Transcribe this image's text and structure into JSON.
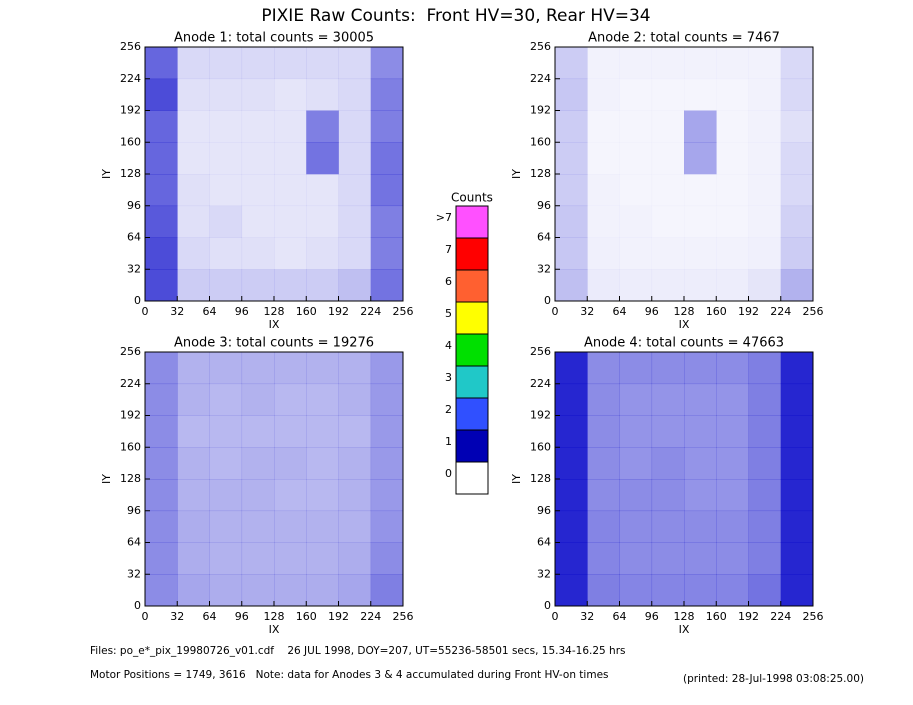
{
  "title": "PIXIE Raw Counts:  Front HV=30, Rear HV=34",
  "chart_data": [
    {
      "type": "heatmap",
      "title": "Anode 1: total counts = 30005",
      "xlabel": "IX",
      "ylabel": "IY",
      "xlim": [
        0,
        256
      ],
      "ylim": [
        0,
        256
      ],
      "xticks": [
        0,
        32,
        64,
        96,
        128,
        160,
        192,
        224,
        256
      ],
      "yticks": [
        0,
        32,
        64,
        96,
        128,
        160,
        192,
        224,
        256
      ],
      "z": [
        [
          0.6,
          0.15,
          0.15,
          0.15,
          0.15,
          0.15,
          0.15,
          0.45
        ],
        [
          0.7,
          0.12,
          0.12,
          0.12,
          0.1,
          0.12,
          0.15,
          0.5
        ],
        [
          0.6,
          0.1,
          0.1,
          0.1,
          0.1,
          0.5,
          0.15,
          0.5
        ],
        [
          0.6,
          0.1,
          0.1,
          0.1,
          0.1,
          0.55,
          0.15,
          0.55
        ],
        [
          0.6,
          0.12,
          0.1,
          0.1,
          0.1,
          0.1,
          0.15,
          0.55
        ],
        [
          0.65,
          0.12,
          0.15,
          0.1,
          0.1,
          0.1,
          0.15,
          0.5
        ],
        [
          0.7,
          0.15,
          0.12,
          0.12,
          0.1,
          0.12,
          0.15,
          0.5
        ],
        [
          0.7,
          0.2,
          0.2,
          0.2,
          0.2,
          0.2,
          0.25,
          0.55
        ]
      ]
    },
    {
      "type": "heatmap",
      "title": "Anode 2: total counts = 7467",
      "xlabel": "IX",
      "ylabel": "IY",
      "xlim": [
        0,
        256
      ],
      "ylim": [
        0,
        256
      ],
      "xticks": [
        0,
        32,
        64,
        96,
        128,
        160,
        192,
        224,
        256
      ],
      "yticks": [
        0,
        32,
        64,
        96,
        128,
        160,
        192,
        224,
        256
      ],
      "z": [
        [
          0.2,
          0.05,
          0.05,
          0.05,
          0.05,
          0.05,
          0.05,
          0.15
        ],
        [
          0.22,
          0.05,
          0.04,
          0.04,
          0.04,
          0.04,
          0.05,
          0.15
        ],
        [
          0.2,
          0.04,
          0.04,
          0.04,
          0.35,
          0.04,
          0.05,
          0.12
        ],
        [
          0.2,
          0.04,
          0.04,
          0.04,
          0.35,
          0.04,
          0.05,
          0.15
        ],
        [
          0.2,
          0.05,
          0.04,
          0.04,
          0.04,
          0.04,
          0.05,
          0.15
        ],
        [
          0.22,
          0.05,
          0.05,
          0.04,
          0.04,
          0.04,
          0.05,
          0.18
        ],
        [
          0.22,
          0.06,
          0.05,
          0.05,
          0.05,
          0.05,
          0.06,
          0.2
        ],
        [
          0.25,
          0.08,
          0.07,
          0.07,
          0.07,
          0.07,
          0.1,
          0.3
        ]
      ]
    },
    {
      "type": "heatmap",
      "title": "Anode 3: total counts = 19276",
      "xlabel": "IX",
      "ylabel": "IY",
      "xlim": [
        0,
        256
      ],
      "ylim": [
        0,
        256
      ],
      "xticks": [
        0,
        32,
        64,
        96,
        128,
        160,
        192,
        224,
        256
      ],
      "yticks": [
        0,
        32,
        64,
        96,
        128,
        160,
        192,
        224,
        256
      ],
      "z": [
        [
          0.45,
          0.3,
          0.3,
          0.3,
          0.3,
          0.3,
          0.3,
          0.4
        ],
        [
          0.45,
          0.3,
          0.28,
          0.3,
          0.28,
          0.28,
          0.3,
          0.4
        ],
        [
          0.45,
          0.28,
          0.28,
          0.28,
          0.28,
          0.28,
          0.28,
          0.4
        ],
        [
          0.45,
          0.3,
          0.28,
          0.3,
          0.3,
          0.28,
          0.3,
          0.4
        ],
        [
          0.45,
          0.3,
          0.3,
          0.3,
          0.28,
          0.28,
          0.3,
          0.4
        ],
        [
          0.45,
          0.32,
          0.3,
          0.3,
          0.3,
          0.3,
          0.3,
          0.42
        ],
        [
          0.45,
          0.32,
          0.3,
          0.3,
          0.3,
          0.3,
          0.32,
          0.45
        ],
        [
          0.45,
          0.35,
          0.32,
          0.32,
          0.32,
          0.32,
          0.35,
          0.5
        ]
      ]
    },
    {
      "type": "heatmap",
      "title": "Anode 4: total counts = 47663",
      "xlabel": "IX",
      "ylabel": "IY",
      "xlim": [
        0,
        256
      ],
      "ylim": [
        0,
        256
      ],
      "xticks": [
        0,
        32,
        64,
        96,
        128,
        160,
        192,
        224,
        256
      ],
      "yticks": [
        0,
        32,
        64,
        96,
        128,
        160,
        192,
        224,
        256
      ],
      "z": [
        [
          0.85,
          0.45,
          0.45,
          0.45,
          0.45,
          0.45,
          0.5,
          0.85
        ],
        [
          0.85,
          0.45,
          0.42,
          0.42,
          0.42,
          0.42,
          0.5,
          0.85
        ],
        [
          0.85,
          0.45,
          0.42,
          0.42,
          0.42,
          0.42,
          0.5,
          0.85
        ],
        [
          0.85,
          0.45,
          0.42,
          0.45,
          0.42,
          0.42,
          0.5,
          0.85
        ],
        [
          0.85,
          0.45,
          0.45,
          0.45,
          0.42,
          0.42,
          0.5,
          0.85
        ],
        [
          0.85,
          0.48,
          0.45,
          0.45,
          0.45,
          0.45,
          0.5,
          0.85
        ],
        [
          0.85,
          0.48,
          0.45,
          0.45,
          0.45,
          0.45,
          0.5,
          0.85
        ],
        [
          0.85,
          0.5,
          0.48,
          0.48,
          0.48,
          0.48,
          0.55,
          0.85
        ]
      ]
    }
  ],
  "colorbar": {
    "title": "Counts",
    "levels": [
      0,
      1,
      2,
      3,
      4,
      5,
      6,
      7,
      {
        "value": 8,
        "label": ">7"
      }
    ],
    "colors": [
      "#ffffff",
      "#0000b4",
      "#3050ff",
      "#20c8c8",
      "#00e000",
      "#ffff00",
      "#ff6030",
      "#ff0000",
      "#ff50ff"
    ]
  },
  "footer": {
    "files": "Files: po_e*_pix_19980726_v01.cdf    26 JUL 1998, DOY=207, UT=55236-58501 secs, 15.34-16.25 hrs",
    "motor": "Motor Positions = 1749, 3616   Note: data for Anodes 3 & 4 accumulated during Front HV-on times",
    "printed": "(printed: 28-Jul-1998 03:08:25.00)"
  }
}
